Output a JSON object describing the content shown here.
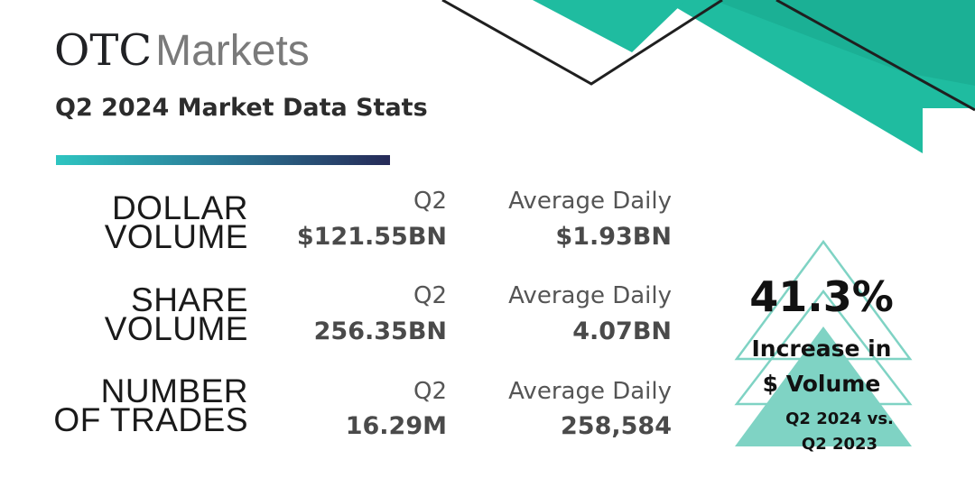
{
  "header": {
    "logo_otc": "OTC",
    "logo_markets": "Markets",
    "subtitle": "Q2 2024 Market Data Stats"
  },
  "stats": [
    {
      "label_line1": "DOLLAR",
      "label_line2": "VOLUME",
      "q2_label": "Q2",
      "q2_value": "$121.55BN",
      "avg_label": "Average Daily",
      "avg_value": "$1.93BN"
    },
    {
      "label_line1": "SHARE",
      "label_line2": "VOLUME",
      "q2_label": "Q2",
      "q2_value": "256.35BN",
      "avg_label": "Average Daily",
      "avg_value": "4.07BN"
    },
    {
      "label_line1": "NUMBER",
      "label_line2": "OF TRADES",
      "q2_label": "Q2",
      "q2_value": "16.29M",
      "avg_label": "Average Daily",
      "avg_value": "258,584"
    }
  ],
  "highlight": {
    "percent": "41.3%",
    "line1": "Increase in",
    "line2": "$ Volume",
    "line3": "Q2 2024 vs.",
    "line4": "Q2 2023"
  },
  "colors": {
    "teal": "#1fbca0",
    "light_teal": "#7fd3c4",
    "dark": "#1a1a1a",
    "navy": "#262a58"
  }
}
